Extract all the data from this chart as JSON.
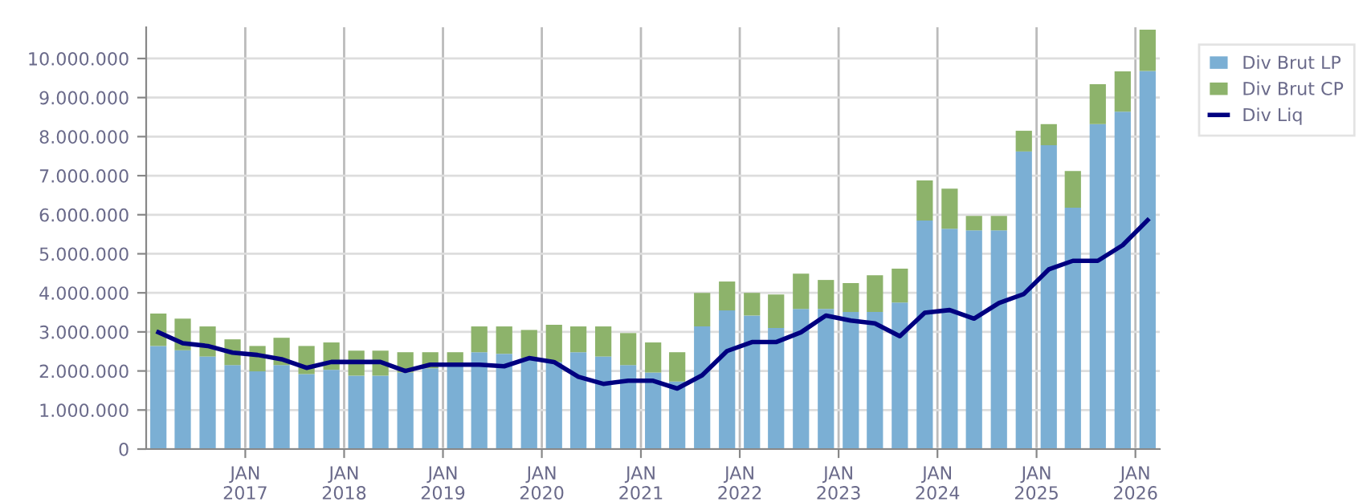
{
  "chart_data": {
    "type": "bar",
    "stacked": true,
    "x": [
      "2016-02-15",
      "2016-05-15",
      "2016-08-15",
      "2016-11-15",
      "2017-02-15",
      "2017-05-15",
      "2017-08-15",
      "2017-11-15",
      "2018-02-15",
      "2018-05-15",
      "2018-08-15",
      "2018-11-15",
      "2019-02-15",
      "2019-05-15",
      "2019-08-15",
      "2019-11-15",
      "2020-02-15",
      "2020-05-15",
      "2020-08-15",
      "2020-11-15",
      "2021-02-15",
      "2021-05-15",
      "2021-08-15",
      "2021-11-15",
      "2022-02-15",
      "2022-05-15",
      "2022-08-15",
      "2022-11-15",
      "2023-02-15",
      "2023-05-15",
      "2023-08-15",
      "2023-11-15",
      "2024-02-15",
      "2024-05-15",
      "2024-08-15",
      "2024-11-15",
      "2025-02-15",
      "2025-05-15",
      "2025-08-15",
      "2025-11-15",
      "2026-02-15"
    ],
    "series": [
      {
        "name": "Div Brut LP",
        "color": "#7bafd4",
        "values": [
          2640000,
          2530000,
          2370000,
          2150000,
          1990000,
          2150000,
          1920000,
          2030000,
          1880000,
          1880000,
          1960000,
          2070000,
          2120000,
          2480000,
          2440000,
          2330000,
          2230000,
          2480000,
          2370000,
          2150000,
          1960000,
          1730000,
          3140000,
          3550000,
          3420000,
          3100000,
          3590000,
          3590000,
          3510000,
          3510000,
          3750000,
          5850000,
          5640000,
          5600000,
          5600000,
          7620000,
          7780000,
          6180000,
          8320000,
          8640000,
          9680000
        ]
      },
      {
        "name": "Div Brut CP",
        "color": "#8db36b",
        "values": [
          830000,
          810000,
          770000,
          660000,
          650000,
          700000,
          720000,
          700000,
          640000,
          640000,
          520000,
          410000,
          360000,
          660000,
          700000,
          720000,
          950000,
          660000,
          770000,
          820000,
          770000,
          750000,
          860000,
          740000,
          580000,
          860000,
          900000,
          740000,
          740000,
          940000,
          870000,
          1030000,
          1030000,
          370000,
          370000,
          530000,
          540000,
          940000,
          1020000,
          1030000,
          1060000
        ]
      },
      {
        "name": "Div Liq",
        "type": "line",
        "color": "#000080",
        "values": [
          2990000,
          2710000,
          2640000,
          2470000,
          2410000,
          2300000,
          2080000,
          2230000,
          2230000,
          2230000,
          2000000,
          2160000,
          2160000,
          2160000,
          2120000,
          2330000,
          2230000,
          1850000,
          1670000,
          1750000,
          1750000,
          1550000,
          1890000,
          2510000,
          2740000,
          2740000,
          2990000,
          3420000,
          3290000,
          3220000,
          2890000,
          3490000,
          3560000,
          3340000,
          3740000,
          3970000,
          4600000,
          4820000,
          4820000,
          5220000,
          5860000
        ]
      }
    ],
    "xlim": [
      "2016-01-01",
      "2026-04-01"
    ],
    "xticks": [
      {
        "value": "2017-01-01",
        "label": "JAN\n2017"
      },
      {
        "value": "2018-01-01",
        "label": "JAN\n2018"
      },
      {
        "value": "2019-01-01",
        "label": "JAN\n2019"
      },
      {
        "value": "2020-01-01",
        "label": "JAN\n2020"
      },
      {
        "value": "2021-01-01",
        "label": "JAN\n2021"
      },
      {
        "value": "2022-01-01",
        "label": "JAN\n2022"
      },
      {
        "value": "2023-01-01",
        "label": "JAN\n2023"
      },
      {
        "value": "2024-01-01",
        "label": "JAN\n2024"
      },
      {
        "value": "2025-01-01",
        "label": "JAN\n2025"
      },
      {
        "value": "2026-01-01",
        "label": "JAN\n2026"
      }
    ],
    "ylim": [
      0,
      10800000
    ],
    "yticks": [
      0,
      {
        "value": 1000000,
        "label": "1.000.000"
      },
      {
        "value": 2000000,
        "label": "2.000.000"
      },
      {
        "value": 3000000,
        "label": "3.000.000"
      },
      {
        "value": 4000000,
        "label": "4.000.000"
      },
      {
        "value": 5000000,
        "label": "5.000.000"
      },
      {
        "value": 6000000,
        "label": "6.000.000"
      },
      {
        "value": 7000000,
        "label": "7.000.000"
      },
      {
        "value": 8000000,
        "label": "8.000.000"
      },
      {
        "value": 9000000,
        "label": "9.000.000"
      },
      {
        "value": 10000000,
        "label": "10.000.000"
      }
    ],
    "grid": true,
    "legend": "top right",
    "marker": "none",
    "line_style": "solid"
  }
}
